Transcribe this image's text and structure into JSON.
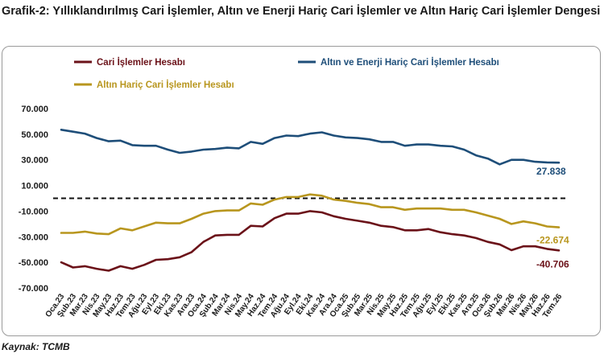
{
  "title": "Grafik-2: Yıllıklandırılmış Cari İşlemler, Altın ve Enerji Hariç Cari İşlemler ve Altın Hariç Cari İşlemler Dengesi (Milyon Dolar)",
  "source": "Kaynak: TCMB",
  "chart_data": {
    "type": "line",
    "title": "Grafik-2: Yıllıklandırılmış Cari İşlemler, Altın ve Enerji Hariç Cari İşlemler ve Altın Hariç Cari İşlemler Dengesi (Milyon Dolar)",
    "xlabel": "",
    "ylabel": "",
    "ylim": [
      -70000,
      70000
    ],
    "y_ticks": [
      70000,
      50000,
      30000,
      10000,
      -10000,
      -30000,
      -50000,
      -70000
    ],
    "y_tick_labels": [
      "70.000",
      "50.000",
      "30.000",
      "10.000",
      "-10.000",
      "-30.000",
      "-50.000",
      "-70.000"
    ],
    "x": [
      "Oca.23",
      "Şub.23",
      "Mar.23",
      "Nis.23",
      "May.23",
      "Haz.23",
      "Tem.23",
      "Ağu.23",
      "Eyl.23",
      "Eki.23",
      "Kas.23",
      "Ara.23",
      "Oca.24",
      "Şub.24",
      "Mar.24",
      "Nis.24",
      "May.24",
      "Haz.24",
      "Tem.24",
      "Ağu.24",
      "Eyl.24",
      "Eki.24",
      "Kas.24",
      "Ara.24",
      "Oca.25",
      "Şub.25",
      "Mar.25",
      "Nis.25",
      "May.25",
      "Haz.25",
      "Tem.25",
      "Ağu.25",
      "Eyl.25",
      "Eki.25",
      "Kas.25",
      "Ara.25",
      "Oca.26",
      "Şub.26",
      "Mar.26",
      "Nis.26",
      "May.26",
      "Haz.26",
      "Tem.26"
    ],
    "reference_line": 0,
    "legend_placement": "top",
    "grid": false,
    "series": [
      {
        "name": "Cari İşlemler Hesabı",
        "color": "#6b1219",
        "values": [
          -50000,
          -54000,
          -53000,
          -55000,
          -56500,
          -53000,
          -55000,
          -52000,
          -48000,
          -47500,
          -46000,
          -42000,
          -34000,
          -29000,
          -28500,
          -28500,
          -21500,
          -22000,
          -15500,
          -12000,
          -12000,
          -10000,
          -11000,
          -14000,
          -16000,
          -17500,
          -19000,
          -21500,
          -22500,
          -25000,
          -25000,
          -24000,
          -26500,
          -28000,
          -29000,
          -31000,
          -34000,
          -36000,
          -40500,
          -37500,
          -37500,
          -39500,
          -40706
        ],
        "end_label": "-40.706"
      },
      {
        "name": "Altın ve Enerji Hariç Cari İşlemler Hesabı",
        "color": "#1e4e79",
        "values": [
          53500,
          52000,
          50500,
          47000,
          44500,
          45000,
          41500,
          41000,
          41000,
          38000,
          35500,
          36500,
          38000,
          38500,
          39500,
          39000,
          44000,
          42500,
          47000,
          49000,
          48500,
          50500,
          51500,
          49000,
          47500,
          47000,
          46000,
          44000,
          44000,
          41000,
          42000,
          42000,
          41000,
          40500,
          38000,
          33500,
          31000,
          26500,
          30000,
          30000,
          28500,
          28000,
          27838
        ],
        "end_label": "27.838"
      },
      {
        "name": "Altın Hariç Cari İşlemler Hesabı",
        "color": "#b8961e",
        "values": [
          -27000,
          -27000,
          -26000,
          -27500,
          -28000,
          -23500,
          -25000,
          -22000,
          -19000,
          -19500,
          -19500,
          -16000,
          -12000,
          -10000,
          -9500,
          -9500,
          -4000,
          -5000,
          -1000,
          1000,
          1000,
          3000,
          2000,
          -1000,
          -2000,
          -3500,
          -4500,
          -7000,
          -7000,
          -9000,
          -8000,
          -8000,
          -8000,
          -9000,
          -9000,
          -11000,
          -13500,
          -16000,
          -20000,
          -18000,
          -19500,
          -22000,
          -22674
        ],
        "end_label": "-22.674"
      }
    ]
  }
}
